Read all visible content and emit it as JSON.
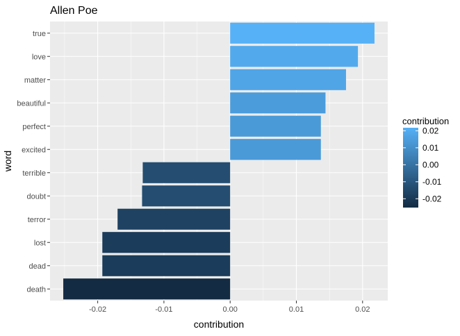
{
  "chart_data": {
    "type": "bar",
    "orientation": "horizontal",
    "title": "Allen Poe",
    "xlabel": "contribution",
    "ylabel": "word",
    "xlim": [
      -0.0272,
      0.0238
    ],
    "x_ticks": [
      -0.02,
      -0.01,
      0.0,
      0.01,
      0.02
    ],
    "x_tick_labels": [
      "-0.02",
      "-0.01",
      "0.00",
      "0.01",
      "0.02"
    ],
    "grid": true,
    "legend": {
      "title": "contribution",
      "position": "right",
      "ticks": [
        0.02,
        0.01,
        0.0,
        -0.01,
        -0.02
      ],
      "tick_labels": [
        "0.02",
        "0.01",
        "0.00",
        "-0.01",
        "-0.02"
      ],
      "range": [
        -0.0252,
        0.0218
      ],
      "color_low": "#132b43",
      "color_high": "#56b1f7"
    },
    "categories": [
      "true",
      "love",
      "matter",
      "beautiful",
      "perfect",
      "excited",
      "terrible",
      "doubt",
      "terror",
      "lost",
      "dead",
      "death"
    ],
    "values": [
      0.0218,
      0.0193,
      0.0175,
      0.0144,
      0.0137,
      0.0137,
      -0.0132,
      -0.0133,
      -0.017,
      -0.0193,
      -0.0193,
      -0.0252
    ]
  }
}
